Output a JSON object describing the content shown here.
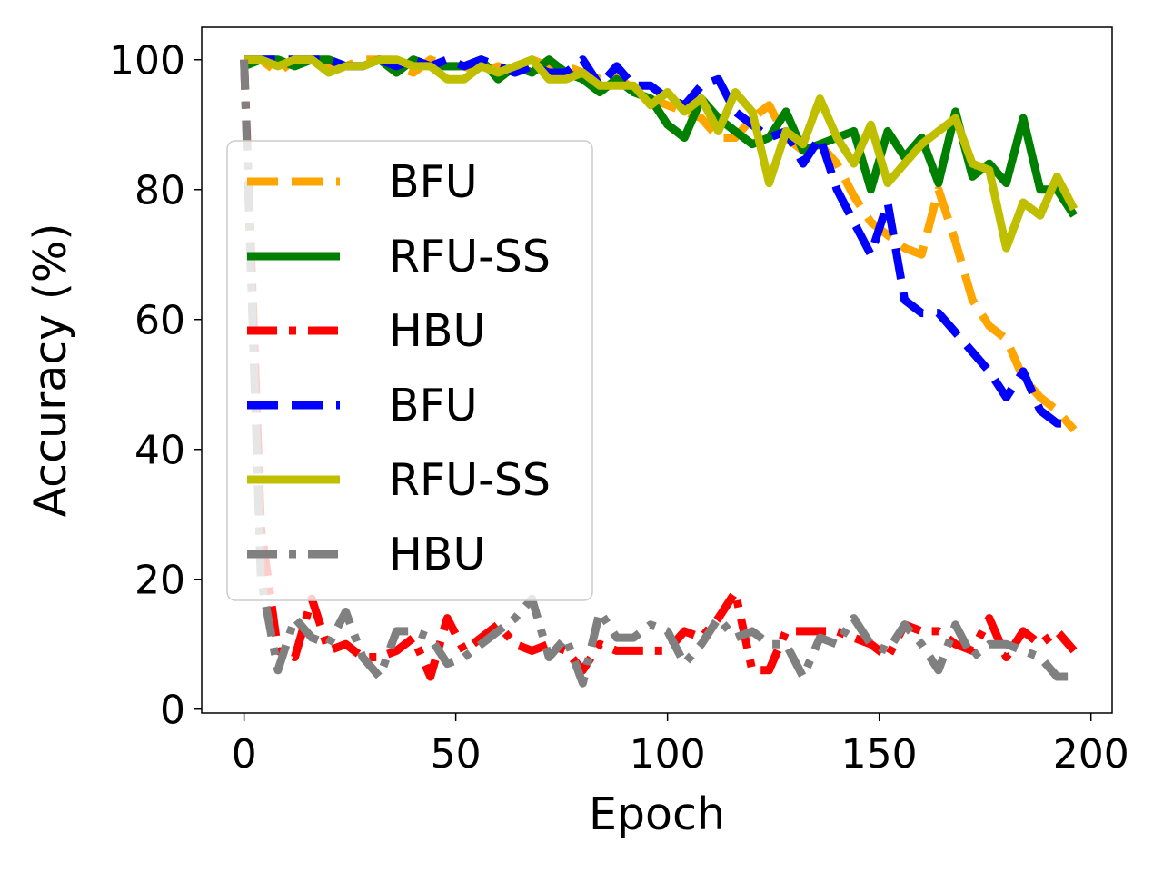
{
  "chart_data": {
    "type": "line",
    "title": "",
    "xlabel": "Epoch",
    "ylabel": "Accuracy (%)",
    "xlim": [
      -10,
      205
    ],
    "ylim": [
      -0.6,
      105
    ],
    "xticks": [
      0,
      50,
      100,
      150,
      200
    ],
    "yticks": [
      0,
      20,
      40,
      60,
      80,
      100
    ],
    "grid": false,
    "legend_position": "center-left",
    "x": [
      0,
      4,
      8,
      12,
      16,
      20,
      24,
      28,
      32,
      36,
      40,
      44,
      48,
      52,
      56,
      60,
      64,
      68,
      72,
      76,
      80,
      84,
      88,
      92,
      96,
      100,
      104,
      108,
      112,
      116,
      120,
      124,
      128,
      132,
      136,
      140,
      144,
      148,
      152,
      156,
      160,
      164,
      168,
      172,
      176,
      180,
      184,
      188,
      192,
      196
    ],
    "series": [
      {
        "name": "BFU",
        "color": "#FFA500",
        "style": "dashed",
        "values": [
          100,
          100,
          98,
          100,
          100,
          99,
          99,
          100,
          100,
          99,
          98,
          100,
          99,
          99,
          98,
          99,
          98,
          100,
          99,
          99,
          98,
          97,
          98,
          95,
          94,
          93,
          92,
          91,
          88,
          88,
          91,
          93,
          88,
          86,
          87,
          84,
          79,
          75,
          73,
          71,
          70,
          80,
          72,
          63,
          59,
          57,
          51,
          48,
          46,
          43
        ]
      },
      {
        "name": "RFU-SS",
        "color": "#008000",
        "style": "solid",
        "values": [
          99,
          100,
          100,
          99,
          100,
          100,
          99,
          99,
          100,
          98,
          100,
          99,
          99,
          99,
          100,
          97,
          99,
          98,
          100,
          98,
          97,
          95,
          97,
          95,
          94,
          90,
          88,
          94,
          91,
          89,
          87,
          88,
          92,
          86,
          87,
          88,
          89,
          80,
          89,
          85,
          88,
          81,
          92,
          82,
          84,
          81,
          91,
          80,
          80,
          76
        ]
      },
      {
        "name": "HBU",
        "color": "#FF0000",
        "style": "dashdot",
        "values": [
          100,
          28,
          9,
          8,
          17,
          9,
          10,
          8,
          8,
          9,
          11,
          5,
          14,
          9,
          11,
          13,
          10,
          9,
          10,
          9,
          6,
          10,
          9,
          9,
          9,
          9,
          12,
          11,
          14,
          18,
          6,
          6,
          12,
          12,
          12,
          12,
          11,
          10,
          8,
          13,
          12,
          12,
          10,
          9,
          14,
          8,
          12,
          10,
          12,
          9
        ]
      },
      {
        "name": "BFU",
        "color": "#0000FF",
        "style": "dashed",
        "values": [
          100,
          100,
          100,
          100,
          100,
          100,
          99,
          99,
          100,
          99,
          100,
          99,
          100,
          99,
          100,
          99,
          98,
          99,
          98,
          98,
          100,
          96,
          99,
          96,
          96,
          94,
          93,
          96,
          97,
          92,
          90,
          88,
          89,
          84,
          88,
          80,
          75,
          70,
          78,
          63,
          61,
          61,
          58,
          55,
          52,
          48,
          52,
          46,
          44,
          44
        ]
      },
      {
        "name": "RFU-SS",
        "color": "#BFBF00",
        "style": "solid",
        "values": [
          100,
          100,
          99,
          100,
          100,
          98,
          99,
          99,
          100,
          100,
          99,
          99,
          97,
          97,
          99,
          98,
          99,
          100,
          97,
          97,
          98,
          96,
          96,
          96,
          93,
          95,
          92,
          94,
          89,
          95,
          92,
          81,
          89,
          87,
          94,
          88,
          84,
          90,
          81,
          84,
          87,
          89,
          91,
          84,
          83,
          71,
          78,
          76,
          82,
          77
        ]
      },
      {
        "name": "HBU",
        "color": "#808080",
        "style": "dashdot",
        "values": [
          100,
          20,
          6,
          14,
          11,
          10,
          15,
          8,
          5,
          12,
          12,
          11,
          7,
          8,
          10,
          12,
          14,
          17,
          8,
          11,
          4,
          15,
          11,
          11,
          13,
          12,
          7,
          10,
          14,
          11,
          12,
          10,
          10,
          5,
          11,
          10,
          14,
          10,
          9,
          13,
          10,
          6,
          13,
          8,
          10,
          10,
          9,
          8,
          5,
          5
        ]
      }
    ]
  }
}
